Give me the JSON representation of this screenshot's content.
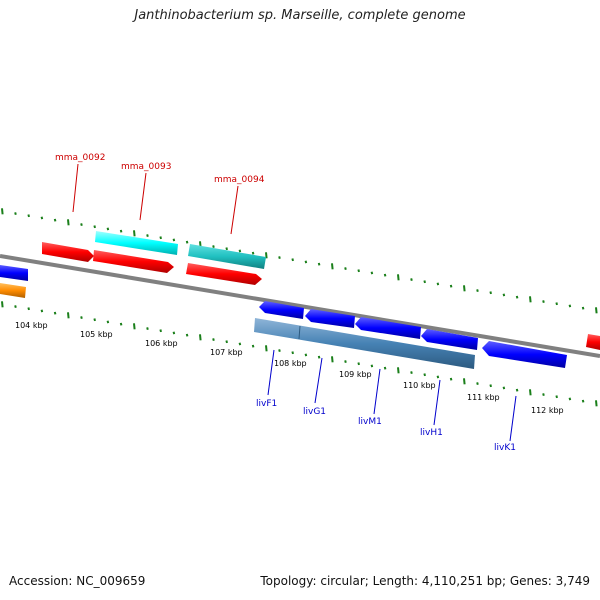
{
  "title": "Janthinobacterium sp. Marseille, complete genome",
  "footer": {
    "accession": "Accession: NC_009659",
    "summary": "Topology: circular; Length: 4,110,251 bp; Genes: 3,749"
  },
  "scale": {
    "labels": [
      "104 kbp",
      "105 kbp",
      "106 kbp",
      "107 kbp",
      "108 kbp",
      "109 kbp",
      "110 kbp",
      "111 kbp",
      "112 kbp"
    ]
  },
  "genes_top": [
    "mma_0092",
    "mma_0093",
    "mma_0094"
  ],
  "genes_bottom": [
    "livF1",
    "livG1",
    "livM1",
    "livH1",
    "livK1"
  ],
  "colors": {
    "forward_cds": "#ff0000",
    "forward_cds_alt": "#00ffff",
    "forward_cds_alt2": "#20c0c0",
    "reverse_cds": "#0000ff",
    "reverse_cds_alt": "#4682b4",
    "reverse_cds_alt2": "#ff8c00",
    "backbone": "#808080",
    "tick": "#1a7f1a",
    "label_forward": "#cc0000",
    "label_reverse": "#0000cc"
  }
}
